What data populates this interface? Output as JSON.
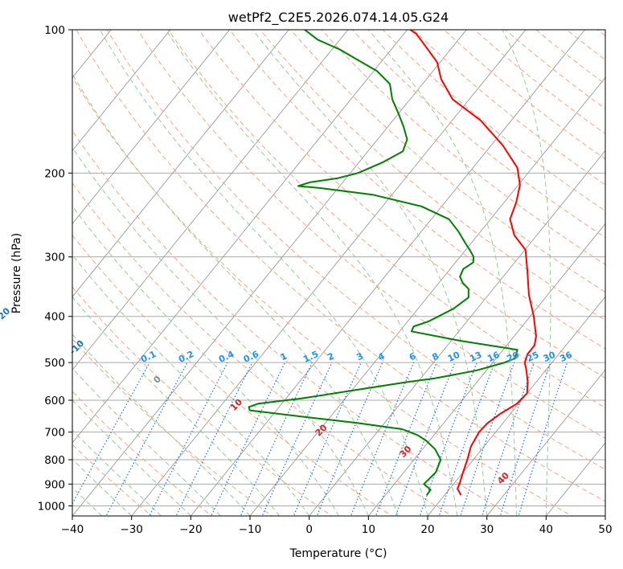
{
  "chart_data": {
    "type": "line",
    "title": "wetPf2_C2E5.2026.074.14.05.G24",
    "xlabel": "Temperature (°C)",
    "ylabel": "Pressure (hPa)",
    "xlim": [
      -40,
      50
    ],
    "ylim": [
      1050,
      100
    ],
    "y_scale": "log",
    "grid": true,
    "x_ticks": [
      -40,
      -30,
      -20,
      -10,
      0,
      10,
      20,
      30,
      40,
      50
    ],
    "y_ticks": [
      100,
      200,
      300,
      400,
      500,
      600,
      700,
      800,
      900,
      1000
    ],
    "skew_t": true,
    "series": [
      {
        "color": "#ff0000",
        "points": [
          [
            22.8,
            950
          ],
          [
            21.3,
            920
          ],
          [
            21.0,
            900
          ],
          [
            20.0,
            850
          ],
          [
            19.0,
            800
          ],
          [
            17.8,
            750
          ],
          [
            17.2,
            700
          ],
          [
            17.4,
            670
          ],
          [
            18.3,
            640
          ],
          [
            19.7,
            610
          ],
          [
            20.0,
            580
          ],
          [
            18.6,
            550
          ],
          [
            16.8,
            520
          ],
          [
            15.4,
            500
          ],
          [
            14.7,
            480
          ],
          [
            14.7,
            460
          ],
          [
            13.7,
            440
          ],
          [
            10.6,
            400
          ],
          [
            6.8,
            360
          ],
          [
            3.2,
            320
          ],
          [
            0.1,
            290
          ],
          [
            -3.8,
            270
          ],
          [
            -6.7,
            250
          ],
          [
            -8.0,
            230
          ],
          [
            -9.7,
            212
          ],
          [
            -12.5,
            195
          ],
          [
            -18.0,
            175
          ],
          [
            -25.2,
            155
          ],
          [
            -32.8,
            140
          ],
          [
            -37.5,
            127
          ],
          [
            -40.5,
            117
          ],
          [
            -44.3,
            109
          ],
          [
            -47.9,
            102
          ],
          [
            -49.5,
            100
          ]
        ]
      },
      {
        "color": "#008000",
        "points": [
          [
            17.0,
            950
          ],
          [
            16.9,
            925
          ],
          [
            15.0,
            900
          ],
          [
            15.4,
            850
          ],
          [
            14.5,
            800
          ],
          [
            12.1,
            760
          ],
          [
            9.5,
            730
          ],
          [
            7.2,
            710
          ],
          [
            3.8,
            690
          ],
          [
            -4.5,
            670
          ],
          [
            -14.5,
            650
          ],
          [
            -24.5,
            630
          ],
          [
            -25.1,
            620
          ],
          [
            -24.0,
            610
          ],
          [
            -17.5,
            595
          ],
          [
            -9.0,
            570
          ],
          [
            -2.0,
            550
          ],
          [
            2.3,
            540
          ],
          [
            8.2,
            520
          ],
          [
            12.0,
            500
          ],
          [
            13.2,
            490
          ],
          [
            12.4,
            470
          ],
          [
            1.5,
            450
          ],
          [
            -8.0,
            430
          ],
          [
            -8.3,
            420
          ],
          [
            -6.5,
            410
          ],
          [
            -5.5,
            400
          ],
          [
            -4.0,
            385
          ],
          [
            -3.0,
            365
          ],
          [
            -4.2,
            350
          ],
          [
            -6.0,
            340
          ],
          [
            -7.3,
            330
          ],
          [
            -7.8,
            318
          ],
          [
            -7.0,
            308
          ],
          [
            -7.7,
            300
          ],
          [
            -9.3,
            290
          ],
          [
            -11.1,
            280
          ],
          [
            -13.8,
            265
          ],
          [
            -17.0,
            250
          ],
          [
            -23.4,
            235
          ],
          [
            -33.3,
            222
          ],
          [
            -43.0,
            215
          ],
          [
            -47.0,
            213
          ],
          [
            -45.5,
            209
          ],
          [
            -41.4,
            205
          ],
          [
            -38.7,
            200
          ],
          [
            -36.0,
            190
          ],
          [
            -34.1,
            180
          ],
          [
            -35.0,
            170
          ],
          [
            -37.3,
            160
          ],
          [
            -40.0,
            150
          ],
          [
            -43.0,
            140
          ],
          [
            -45.5,
            130
          ],
          [
            -49.5,
            122
          ],
          [
            -54.0,
            116
          ],
          [
            -58.7,
            110
          ],
          [
            -63.7,
            105
          ],
          [
            -67.3,
            100
          ]
        ]
      }
    ],
    "annotations": {
      "dry_adiabats": [
        "-100",
        "-90",
        "-80",
        "-70",
        "-60",
        "-50",
        "-40",
        "-30",
        "-20",
        "-10",
        "0",
        "10",
        "20",
        "30",
        "40"
      ],
      "mixing_ratios": [
        "0.1",
        "0.2",
        "0.4",
        "0.6",
        "1",
        "1.5",
        "2",
        "3",
        "4",
        "6",
        "8",
        "10",
        "13",
        "16",
        "20",
        "25",
        "30",
        "36"
      ],
      "colors": {
        "dry_adiabat_labels": "#1f77b4",
        "dry_adiabat_labels_low": "#888888",
        "dry_adiabat_labels_warm": "#d62728",
        "mixing_ratio_labels": "#1e90ff",
        "isotherms": "#999999",
        "dry_adiabat_lines": "#f4a582",
        "moist_adiabat_lines": "#98c998",
        "mixing_lines": "#1e6fd9",
        "isobars": "#aaaaaa",
        "frame": "#000000"
      }
    }
  }
}
